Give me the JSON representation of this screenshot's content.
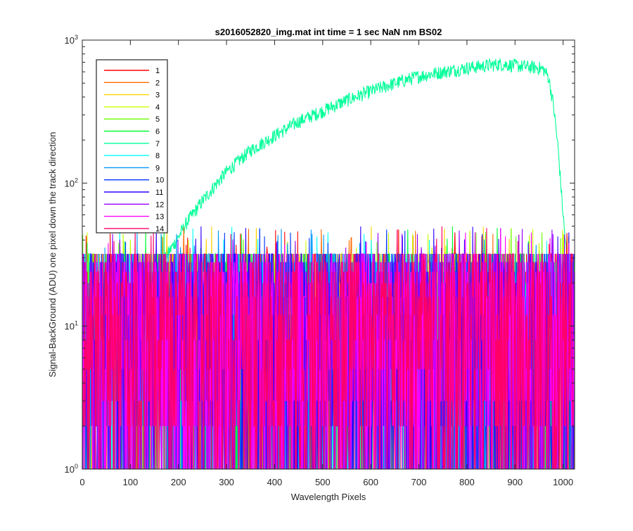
{
  "chart_data": {
    "type": "line",
    "title": "s2016052820_img.mat int time = 1 sec  NaN nm BS02",
    "xlabel": "Wavelength Pixels",
    "ylabel": "Signal-BackGround (ADU) one pixel down the track direction",
    "xlim": [
      0,
      1024
    ],
    "ylim": [
      1,
      1000
    ],
    "yscale": "log",
    "x_ticks": [
      0,
      100,
      200,
      300,
      400,
      500,
      600,
      700,
      800,
      900,
      1000
    ],
    "y_ticks": [
      {
        "value": 1,
        "base": "10",
        "exp": "0"
      },
      {
        "value": 10,
        "base": "10",
        "exp": "1"
      },
      {
        "value": 100,
        "base": "10",
        "exp": "2"
      },
      {
        "value": 1000,
        "base": "10",
        "exp": "3"
      }
    ],
    "grid": false,
    "legend": "top-left",
    "series": [
      {
        "name": "1",
        "color": "#ff0000",
        "kind": "noise"
      },
      {
        "name": "2",
        "color": "#ff6a00",
        "kind": "noise"
      },
      {
        "name": "3",
        "color": "#ffd400",
        "kind": "noise"
      },
      {
        "name": "4",
        "color": "#c8ff00",
        "kind": "noise"
      },
      {
        "name": "5",
        "color": "#66ff00",
        "kind": "noise"
      },
      {
        "name": "6",
        "color": "#00ff33",
        "kind": "noise"
      },
      {
        "name": "7",
        "color": "#00ff99",
        "kind": "signal",
        "profile_x": [
          140,
          160,
          180,
          200,
          220,
          250,
          280,
          300,
          350,
          400,
          450,
          500,
          550,
          600,
          650,
          700,
          750,
          800,
          850,
          870,
          900,
          950,
          960,
          970,
          980,
          990,
          1000,
          1010,
          1020
        ],
        "profile_y": [
          20,
          26,
          33,
          42,
          55,
          75,
          100,
          120,
          170,
          215,
          270,
          320,
          380,
          440,
          500,
          560,
          600,
          640,
          670,
          680,
          665,
          640,
          620,
          550,
          350,
          170,
          60,
          25,
          18
        ]
      },
      {
        "name": "8",
        "color": "#00ffff",
        "kind": "noise"
      },
      {
        "name": "9",
        "color": "#0099ff",
        "kind": "noise"
      },
      {
        "name": "10",
        "color": "#0033ff",
        "kind": "noise"
      },
      {
        "name": "11",
        "color": "#3300ff",
        "kind": "noise"
      },
      {
        "name": "12",
        "color": "#9900ff",
        "kind": "noise"
      },
      {
        "name": "13",
        "color": "#ff00ff",
        "kind": "noise"
      },
      {
        "name": "14",
        "color": "#ff0066",
        "kind": "noise"
      }
    ],
    "noise_levels": [
      1,
      2,
      3,
      5,
      8,
      12,
      16,
      20,
      24,
      28,
      32
    ]
  }
}
